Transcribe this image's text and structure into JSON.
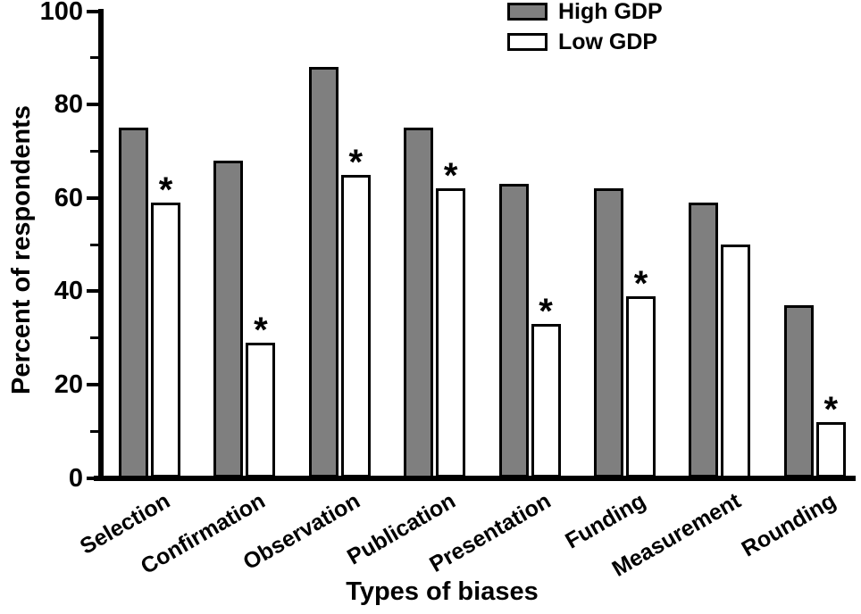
{
  "chart_data": {
    "type": "bar",
    "title": "",
    "xlabel": "Types of biases",
    "ylabel": "Percent of respondents",
    "ylim": [
      0,
      100
    ],
    "yticks_major": [
      0,
      20,
      40,
      60,
      80,
      100
    ],
    "yticks_minor": [
      10,
      30,
      50,
      70,
      90
    ],
    "grid": false,
    "categories": [
      "Selection",
      "Confirmation",
      "Observation",
      "Publication",
      "Presentation",
      "Funding",
      "Measurement",
      "Rounding"
    ],
    "series": [
      {
        "name": "High GDP",
        "color": "#7f7f7f",
        "values": [
          75,
          68,
          88,
          75,
          63,
          62,
          59,
          37
        ]
      },
      {
        "name": "Low GDP",
        "color": "#ffffff",
        "values": [
          59,
          29,
          65,
          62,
          33,
          39,
          50,
          12
        ]
      }
    ],
    "significance": {
      "marker": "*",
      "applies_to_series": "Low GDP",
      "flags": [
        true,
        true,
        true,
        true,
        true,
        true,
        false,
        true
      ]
    },
    "legend": {
      "position": "top-center",
      "entries": [
        "High GDP",
        "Low GDP"
      ]
    },
    "axis_color": "#000000",
    "background_color": "#ffffff"
  }
}
